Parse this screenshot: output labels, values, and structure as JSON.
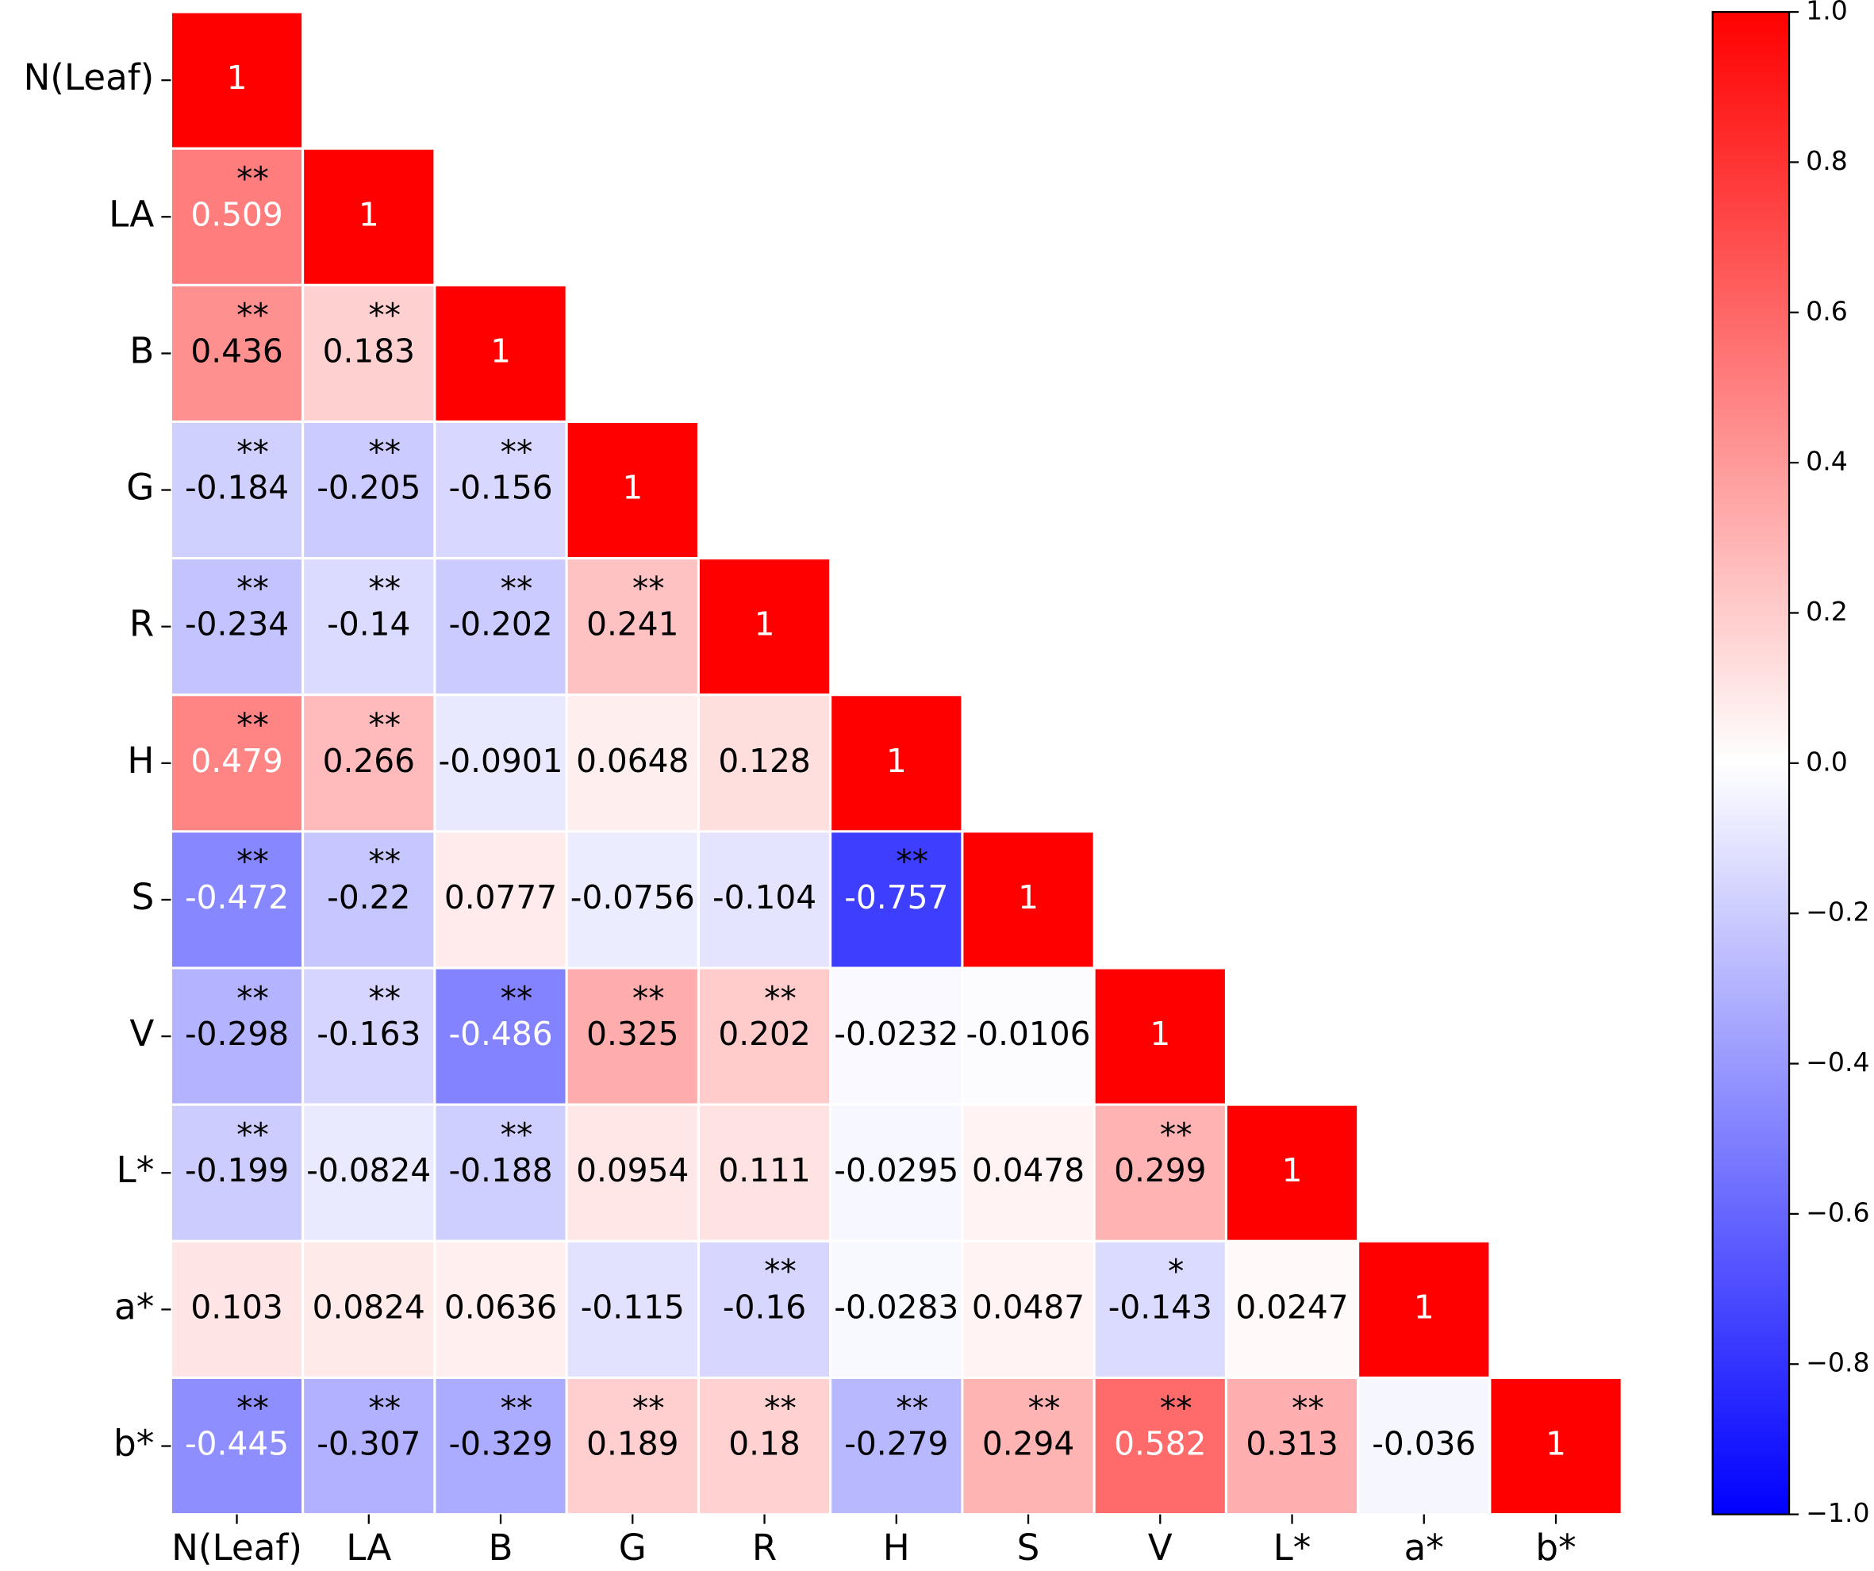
{
  "chart_data": {
    "type": "heatmap",
    "colormap": "bwr",
    "zlim": [
      -1,
      1
    ],
    "categories": [
      "N(Leaf)",
      "LA",
      "B",
      "G",
      "R",
      "H",
      "S",
      "V",
      "L*",
      "a*",
      "b*"
    ],
    "values": [
      [
        1
      ],
      [
        0.509,
        1
      ],
      [
        0.436,
        0.183,
        1
      ],
      [
        -0.184,
        -0.205,
        -0.156,
        1
      ],
      [
        -0.234,
        -0.14,
        -0.202,
        0.241,
        1
      ],
      [
        0.479,
        0.266,
        -0.0901,
        0.0648,
        0.128,
        1
      ],
      [
        -0.472,
        -0.22,
        0.0777,
        -0.0756,
        -0.104,
        -0.757,
        1
      ],
      [
        -0.298,
        -0.163,
        -0.486,
        0.325,
        0.202,
        -0.0232,
        -0.0106,
        1
      ],
      [
        -0.199,
        -0.0824,
        -0.188,
        0.0954,
        0.111,
        -0.0295,
        0.0478,
        0.299,
        1
      ],
      [
        0.103,
        0.0824,
        0.0636,
        -0.115,
        -0.16,
        -0.0283,
        0.0487,
        -0.143,
        0.0247,
        1
      ],
      [
        -0.445,
        -0.307,
        -0.329,
        0.189,
        0.18,
        -0.279,
        0.294,
        0.582,
        0.313,
        -0.036,
        1
      ]
    ],
    "significance": [
      [
        null
      ],
      [
        "**",
        null
      ],
      [
        "**",
        "**",
        null
      ],
      [
        "**",
        "**",
        "**",
        null
      ],
      [
        "**",
        "**",
        "**",
        "**",
        null
      ],
      [
        "**",
        "**",
        null,
        null,
        null,
        null
      ],
      [
        "**",
        "**",
        null,
        null,
        null,
        "**",
        null
      ],
      [
        "**",
        "**",
        "**",
        "**",
        "**",
        null,
        null,
        null
      ],
      [
        "**",
        null,
        "**",
        null,
        null,
        null,
        null,
        "**",
        null
      ],
      [
        null,
        null,
        null,
        null,
        "**",
        null,
        null,
        "*",
        null,
        null
      ],
      [
        "**",
        "**",
        "**",
        "**",
        "**",
        "**",
        "**",
        "**",
        "**",
        null,
        null
      ]
    ],
    "colorbar_ticks": [
      {
        "value": 1,
        "label": "1.0"
      },
      0.8,
      0.6,
      0.4,
      0.2,
      {
        "value": 0,
        "label": "0.0"
      },
      {
        "value": -0.2,
        "label": "−0.2"
      },
      {
        "value": -0.4,
        "label": "−0.4"
      },
      {
        "value": -0.6,
        "label": "−0.6"
      },
      {
        "value": -0.8,
        "label": "−0.8"
      },
      {
        "value": -1,
        "label": "−1.0"
      }
    ]
  }
}
